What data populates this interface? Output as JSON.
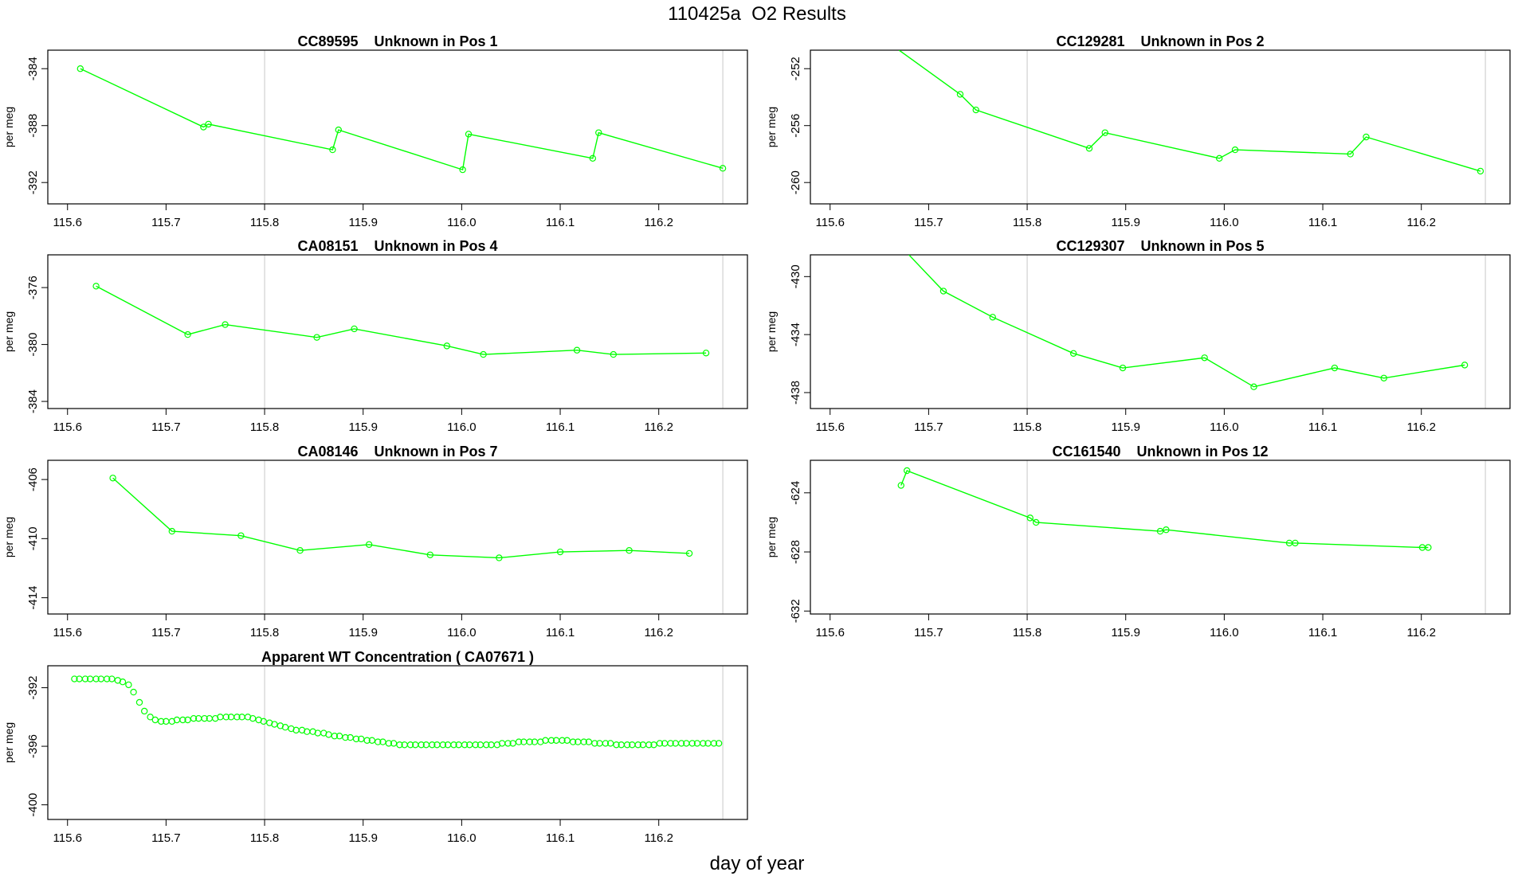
{
  "page": {
    "title": "110425a  O2 Results",
    "xlabel": "day of year"
  },
  "colors": {
    "series": "#00ff00",
    "axis": "#000000",
    "vline": "#c8c8c8"
  },
  "chart_data": [
    {
      "type": "line",
      "title": "CC89595    Unknown in Pos 1",
      "ylabel": "per meg",
      "xlim": [
        115.58,
        116.29
      ],
      "ylim": [
        -393.5,
        -382.7
      ],
      "xticks": [
        115.6,
        115.7,
        115.8,
        115.9,
        116.0,
        116.1,
        116.2
      ],
      "yticks": [
        -384,
        -388,
        -392
      ],
      "vlines": [
        115.8,
        116.265
      ],
      "grid": false,
      "x": [
        115.613,
        115.738,
        115.743,
        115.869,
        115.875,
        116.001,
        116.007,
        116.133,
        116.139,
        116.265
      ],
      "y": [
        -384.0,
        -388.1,
        -387.9,
        -389.7,
        -388.3,
        -391.1,
        -388.6,
        -390.3,
        -388.5,
        -391.0
      ]
    },
    {
      "type": "line",
      "title": "CC129281    Unknown in Pos 2",
      "ylabel": "per meg",
      "xlim": [
        115.58,
        116.29
      ],
      "ylim": [
        -261.5,
        -250.7
      ],
      "xticks": [
        115.6,
        115.7,
        115.8,
        115.9,
        116.0,
        116.1,
        116.2
      ],
      "yticks": [
        -252,
        -256,
        -260
      ],
      "vlines": [
        115.8,
        116.265
      ],
      "grid": false,
      "lineStartX": 115.67,
      "lineStartY": -250.7,
      "x": [
        115.732,
        115.748,
        115.863,
        115.879,
        115.995,
        116.011,
        116.128,
        116.144,
        116.26
      ],
      "y": [
        -253.8,
        -254.9,
        -257.6,
        -256.5,
        -258.3,
        -257.7,
        -258.0,
        -256.8,
        -259.2
      ]
    },
    {
      "type": "line",
      "title": "CA08151    Unknown in Pos 4",
      "ylabel": "per meg",
      "xlim": [
        115.58,
        116.29
      ],
      "ylim": [
        -384.5,
        -373.7
      ],
      "xticks": [
        115.6,
        115.7,
        115.8,
        115.9,
        116.0,
        116.1,
        116.2
      ],
      "yticks": [
        -376,
        -380,
        -384
      ],
      "vlines": [
        115.8,
        116.265
      ],
      "grid": false,
      "x": [
        115.629,
        115.722,
        115.76,
        115.853,
        115.891,
        115.985,
        116.022,
        116.117,
        116.154,
        116.248
      ],
      "y": [
        -375.9,
        -379.3,
        -378.6,
        -379.5,
        -378.9,
        -380.1,
        -380.7,
        -380.4,
        -380.7,
        -380.6
      ]
    },
    {
      "type": "line",
      "title": "CC129307    Unknown in Pos 5",
      "ylabel": "per meg",
      "xlim": [
        115.58,
        116.29
      ],
      "ylim": [
        -439.1,
        -428.5
      ],
      "xticks": [
        115.6,
        115.7,
        115.8,
        115.9,
        116.0,
        116.1,
        116.2
      ],
      "yticks": [
        -430,
        -434,
        -438
      ],
      "vlines": [
        115.8,
        116.265
      ],
      "grid": false,
      "lineStartX": 115.68,
      "lineStartY": -428.5,
      "x": [
        115.715,
        115.765,
        115.847,
        115.897,
        115.98,
        116.03,
        116.112,
        116.162,
        116.244
      ],
      "y": [
        -431.0,
        -432.8,
        -435.3,
        -436.3,
        -435.6,
        -437.6,
        -436.3,
        -437.0,
        -436.1
      ]
    },
    {
      "type": "line",
      "title": "CA08146    Unknown in Pos 7",
      "ylabel": "per meg",
      "xlim": [
        115.58,
        116.29
      ],
      "ylim": [
        -415.1,
        -404.7
      ],
      "xticks": [
        115.6,
        115.7,
        115.8,
        115.9,
        116.0,
        116.1,
        116.2
      ],
      "yticks": [
        -406,
        -410,
        -414
      ],
      "vlines": [
        115.8,
        116.265
      ],
      "grid": false,
      "x": [
        115.646,
        115.706,
        115.776,
        115.836,
        115.906,
        115.968,
        116.038,
        116.1,
        116.17,
        116.231
      ],
      "y": [
        -405.9,
        -409.5,
        -409.8,
        -410.8,
        -410.4,
        -411.1,
        -411.3,
        -410.9,
        -410.8,
        -411.0
      ]
    },
    {
      "type": "line",
      "title": "CC161540    Unknown in Pos 12",
      "ylabel": "per meg",
      "xlim": [
        115.58,
        116.29
      ],
      "ylim": [
        -632.2,
        -621.8
      ],
      "xticks": [
        115.6,
        115.7,
        115.8,
        115.9,
        116.0,
        116.1,
        116.2
      ],
      "yticks": [
        -624,
        -628,
        -632
      ],
      "vlines": [
        115.8,
        116.265
      ],
      "grid": false,
      "x": [
        115.672,
        115.678,
        115.803,
        115.809,
        115.935,
        115.941,
        116.066,
        116.072,
        116.201,
        116.207
      ],
      "y": [
        -623.5,
        -622.5,
        -625.7,
        -626.0,
        -626.6,
        -626.5,
        -627.4,
        -627.4,
        -627.7,
        -627.7
      ]
    },
    {
      "type": "scatter",
      "title": "Apparent WT Concentration ( CA07671 )",
      "ylabel": "per meg",
      "xlim": [
        115.58,
        116.29
      ],
      "ylim": [
        -401.0,
        -390.5
      ],
      "xticks": [
        115.6,
        115.7,
        115.8,
        115.9,
        116.0,
        116.1,
        116.2
      ],
      "yticks": [
        -392,
        -396,
        -400
      ],
      "vlines": [
        115.8,
        116.265
      ],
      "grid": false,
      "x": [
        115.607,
        115.612,
        115.618,
        115.623,
        115.629,
        115.634,
        115.64,
        115.645,
        115.651,
        115.656,
        115.662,
        115.667,
        115.673,
        115.678,
        115.684,
        115.689,
        115.695,
        115.7,
        115.706,
        115.711,
        115.717,
        115.722,
        115.728,
        115.733,
        115.739,
        115.744,
        115.75,
        115.755,
        115.761,
        115.766,
        115.772,
        115.777,
        115.783,
        115.788,
        115.794,
        115.799,
        115.805,
        115.81,
        115.816,
        115.821,
        115.827,
        115.832,
        115.838,
        115.843,
        115.849,
        115.854,
        115.86,
        115.865,
        115.871,
        115.876,
        115.882,
        115.887,
        115.893,
        115.898,
        115.904,
        115.909,
        115.915,
        115.92,
        115.926,
        115.931,
        115.937,
        115.942,
        115.948,
        115.953,
        115.959,
        115.964,
        115.97,
        115.975,
        115.981,
        115.986,
        115.992,
        115.997,
        116.003,
        116.008,
        116.014,
        116.019,
        116.025,
        116.03,
        116.036,
        116.041,
        116.047,
        116.052,
        116.058,
        116.063,
        116.069,
        116.074,
        116.08,
        116.085,
        116.091,
        116.096,
        116.102,
        116.107,
        116.113,
        116.118,
        116.124,
        116.129,
        116.135,
        116.14,
        116.146,
        116.151,
        116.157,
        116.162,
        116.168,
        116.173,
        116.179,
        116.184,
        116.19,
        116.195,
        116.201,
        116.206,
        116.212,
        116.217,
        116.223,
        116.228,
        116.234,
        116.239,
        116.245,
        116.25,
        116.256,
        116.261
      ],
      "y": [
        -391.4,
        -391.4,
        -391.4,
        -391.4,
        -391.4,
        -391.4,
        -391.4,
        -391.4,
        -391.5,
        -391.6,
        -391.8,
        -392.3,
        -393.0,
        -393.6,
        -394.0,
        -394.2,
        -394.3,
        -394.3,
        -394.3,
        -394.2,
        -394.2,
        -394.2,
        -394.1,
        -394.1,
        -394.1,
        -394.1,
        -394.1,
        -394.0,
        -394.0,
        -394.0,
        -394.0,
        -394.0,
        -394.0,
        -394.1,
        -394.2,
        -394.3,
        -394.4,
        -394.5,
        -394.6,
        -394.7,
        -394.8,
        -394.9,
        -394.9,
        -395.0,
        -395.0,
        -395.1,
        -395.1,
        -395.2,
        -395.3,
        -395.3,
        -395.4,
        -395.4,
        -395.5,
        -395.5,
        -395.6,
        -395.6,
        -395.7,
        -395.7,
        -395.8,
        -395.8,
        -395.9,
        -395.9,
        -395.9,
        -395.9,
        -395.9,
        -395.9,
        -395.9,
        -395.9,
        -395.9,
        -395.9,
        -395.9,
        -395.9,
        -395.9,
        -395.9,
        -395.9,
        -395.9,
        -395.9,
        -395.9,
        -395.9,
        -395.8,
        -395.8,
        -395.8,
        -395.7,
        -395.7,
        -395.7,
        -395.7,
        -395.7,
        -395.6,
        -395.6,
        -395.6,
        -395.6,
        -395.6,
        -395.7,
        -395.7,
        -395.7,
        -395.7,
        -395.8,
        -395.8,
        -395.8,
        -395.8,
        -395.9,
        -395.9,
        -395.9,
        -395.9,
        -395.9,
        -395.9,
        -395.9,
        -395.9,
        -395.8,
        -395.8,
        -395.8,
        -395.8,
        -395.8,
        -395.8,
        -395.8,
        -395.8,
        -395.8,
        -395.8,
        -395.8,
        -395.8
      ]
    }
  ]
}
